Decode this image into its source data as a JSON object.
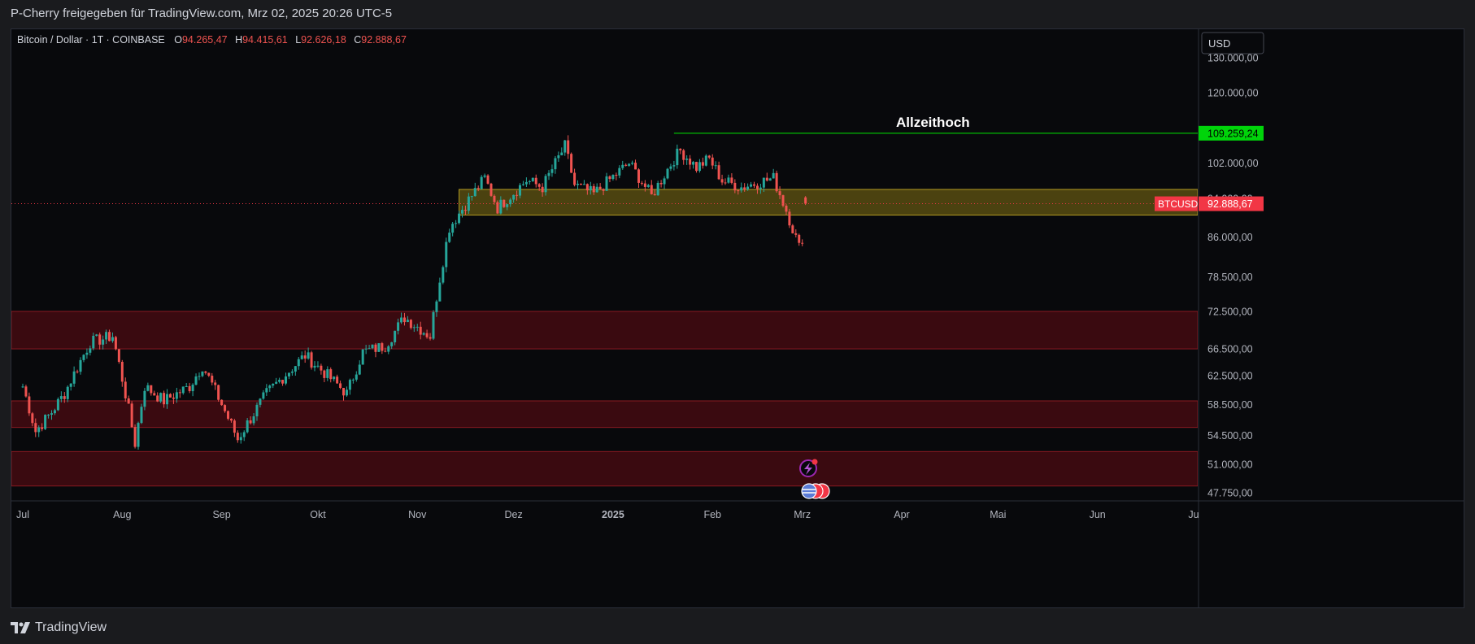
{
  "header": {
    "share_text": "P-Cherry freigegeben für TradingView.com, Mrz 02, 2025 20:26 UTC-5"
  },
  "legend": {
    "symbol": "Bitcoin / Dollar · 1T · COINBASE",
    "open_label": "O",
    "open_value": "94.265,47",
    "high_label": "H",
    "high_value": "94.415,61",
    "low_label": "L",
    "low_value": "92.626,18",
    "close_label": "C",
    "close_value": "92.888,67"
  },
  "currency_button": "USD",
  "annotation": {
    "text": "Allzeithoch"
  },
  "price_tags": {
    "ath_value": "109.259,24",
    "symbol_tag": "BTCUSD",
    "current_value": "92.888,67"
  },
  "footer": {
    "brand": "TradingView"
  },
  "colors": {
    "up": "#26a69a",
    "down": "#ef5350",
    "ath": "#00e600",
    "zone_red": "#3a0a10",
    "zone_yellow": "#6b5e12"
  },
  "chart_data": {
    "type": "candlestick",
    "y_scale": "log",
    "y_ticks": [
      "130.000,00",
      "120.000,00",
      "102.000,00",
      "94.000,00",
      "86.000,00",
      "78.500,00",
      "72.500,00",
      "66.500,00",
      "62.500,00",
      "58.500,00",
      "54.500,00",
      "51.000,00",
      "47.750,00"
    ],
    "y_tick_values": [
      130000,
      120000,
      102000,
      94000,
      86000,
      78500,
      72500,
      66500,
      62500,
      58500,
      54500,
      51000,
      47750
    ],
    "x_ticks": [
      "Jul",
      "Aug",
      "Sep",
      "Okt",
      "Nov",
      "Dez",
      "2025",
      "Feb",
      "Mrz",
      "Apr",
      "Mai",
      "Jun",
      "Ju"
    ],
    "x_tick_bold": [
      false,
      false,
      false,
      false,
      false,
      false,
      true,
      false,
      false,
      false,
      false,
      false,
      false
    ],
    "x_range": [
      "2024-07-01",
      "2025-07-01"
    ],
    "all_time_high": 109259.24,
    "current_price": 92888.67,
    "zones": [
      {
        "type": "resistance",
        "from": 66500,
        "to": 72500
      },
      {
        "type": "support",
        "from": 55500,
        "to": 59000
      },
      {
        "type": "support",
        "from": 48500,
        "to": 52500
      },
      {
        "type": "consolidation",
        "from": 90500,
        "to": 96000
      }
    ],
    "anchors": [
      [
        "2024-07-01",
        61000
      ],
      [
        "2024-07-05",
        55000
      ],
      [
        "2024-07-10",
        57500
      ],
      [
        "2024-07-14",
        60000
      ],
      [
        "2024-07-22",
        67500
      ],
      [
        "2024-07-29",
        68500
      ],
      [
        "2024-08-05",
        53500
      ],
      [
        "2024-08-08",
        61000
      ],
      [
        "2024-08-14",
        59000
      ],
      [
        "2024-08-22",
        61000
      ],
      [
        "2024-08-26",
        64000
      ],
      [
        "2024-09-06",
        54000
      ],
      [
        "2024-09-15",
        60000
      ],
      [
        "2024-09-27",
        65500
      ],
      [
        "2024-10-10",
        60000
      ],
      [
        "2024-10-15",
        66000
      ],
      [
        "2024-10-22",
        67000
      ],
      [
        "2024-10-28",
        71500
      ],
      [
        "2024-11-05",
        68500
      ],
      [
        "2024-11-11",
        88000
      ],
      [
        "2024-11-22",
        98500
      ],
      [
        "2024-11-26",
        92000
      ],
      [
        "2024-12-05",
        98000
      ],
      [
        "2024-12-10",
        96500
      ],
      [
        "2024-12-17",
        106000
      ],
      [
        "2024-12-20",
        97000
      ],
      [
        "2024-12-26",
        95000
      ],
      [
        "2025-01-06",
        102000
      ],
      [
        "2025-01-13",
        94500
      ],
      [
        "2025-01-20",
        103000
      ],
      [
        "2025-01-22",
        105000
      ],
      [
        "2025-01-27",
        101000
      ],
      [
        "2025-01-31",
        103000
      ],
      [
        "2025-02-04",
        98000
      ],
      [
        "2025-02-10",
        96500
      ],
      [
        "2025-02-20",
        98500
      ],
      [
        "2025-02-24",
        91500
      ],
      [
        "2025-02-28",
        84000
      ],
      [
        "2025-03-01",
        86000
      ],
      [
        "2025-03-02",
        94200
      ]
    ]
  }
}
